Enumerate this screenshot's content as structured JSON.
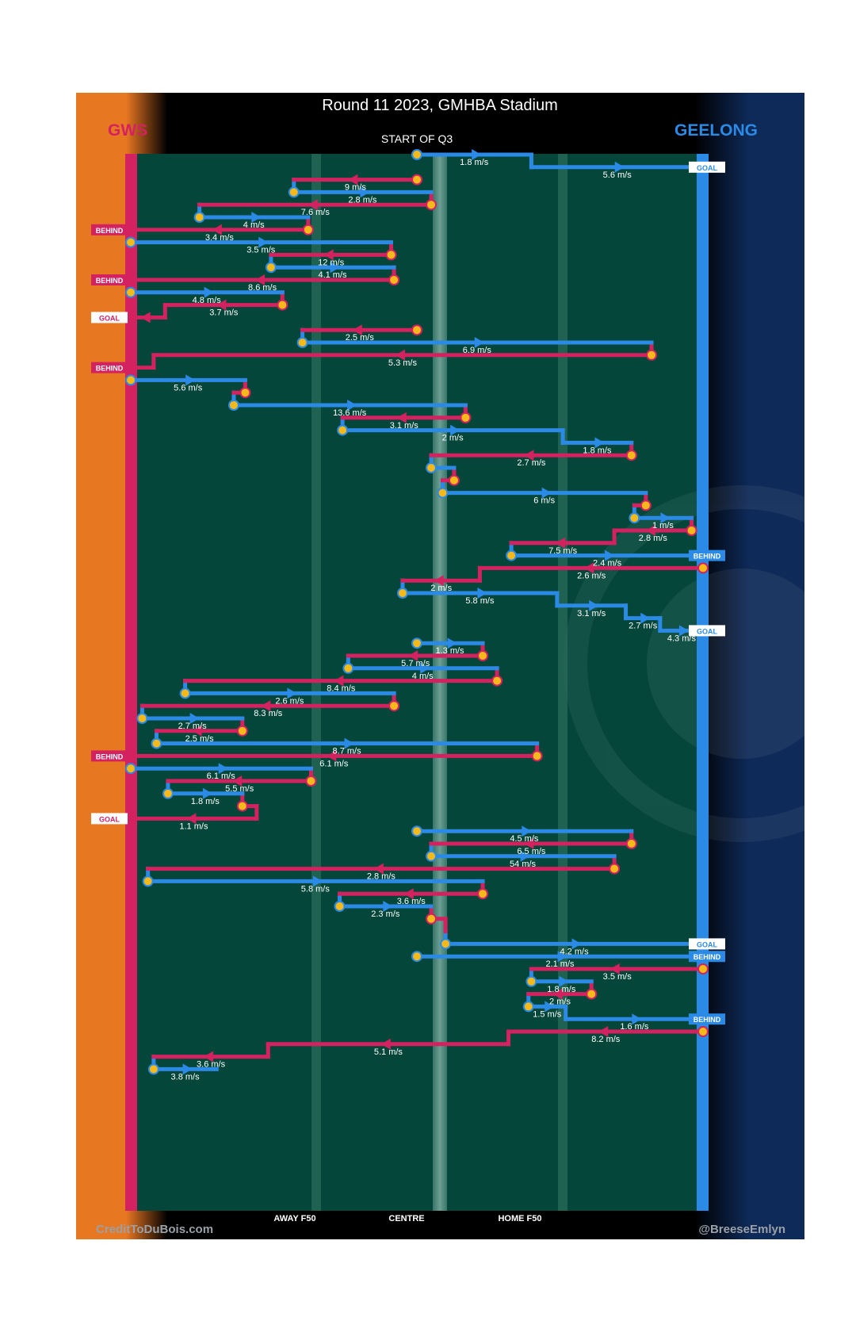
{
  "colors": {
    "gws": "#d4215f",
    "geelong": "#2a8ae6",
    "field": "#04473a",
    "node": "#f5b919",
    "gws_gradient": "#e87722",
    "geelong_gradient": "#0e2a59"
  },
  "header": {
    "title": "Round 11 2023, GMHBA Stadium",
    "start_label": "START OF Q3",
    "team_left": "GWS",
    "team_right": "GEELONG"
  },
  "footer": {
    "credit_left": "CreditToDuBois.com",
    "credit_right": "@BreeseEmlyn"
  },
  "chart_data": {
    "type": "line",
    "title": "Round 11 2023, GMHBA Stadium",
    "subtitle": "START OF Q3",
    "xlabel": "",
    "ylabel": "",
    "x_ticks": [
      "AWAY F50",
      "CENTRE",
      "HOME F50"
    ],
    "x_range": [
      0,
      100
    ],
    "y_range": [
      0,
      76
    ],
    "series": [
      {
        "name": "GWS",
        "direction": "left"
      },
      {
        "name": "GEELONG",
        "direction": "right"
      }
    ],
    "events": [
      {
        "team": "geelong",
        "x1": 50,
        "x2": 70,
        "speed": "1.8 m/s"
      },
      {
        "team": "geelong",
        "x1": 70,
        "x2": 100,
        "speed": "5.6 m/s",
        "outcome": "GOAL"
      },
      {
        "team": "gws",
        "x1": 50,
        "x2": 28.5,
        "speed": "9 m/s"
      },
      {
        "team": "geelong",
        "x1": 28.5,
        "x2": 52.5,
        "speed": "2.8 m/s"
      },
      {
        "team": "gws",
        "x1": 52.5,
        "x2": 12,
        "speed": "7.6 m/s"
      },
      {
        "team": "geelong",
        "x1": 12,
        "x2": 31,
        "speed": "4 m/s"
      },
      {
        "team": "gws",
        "x1": 31,
        "x2": 0,
        "speed": "3.4 m/s",
        "outcome": "BEHIND"
      },
      {
        "team": "geelong",
        "x1": 0,
        "x2": 45.5,
        "speed": "3.5 m/s"
      },
      {
        "team": "gws",
        "x1": 45.5,
        "x2": 24.5,
        "speed": "12 m/s"
      },
      {
        "team": "geelong",
        "x1": 24.5,
        "x2": 46,
        "speed": "4.1 m/s"
      },
      {
        "team": "gws",
        "x1": 46,
        "x2": 0,
        "speed": "8.6 m/s",
        "outcome": "BEHIND"
      },
      {
        "team": "geelong",
        "x1": 0,
        "x2": 26.5,
        "speed": "4.8 m/s"
      },
      {
        "team": "gws",
        "x1": 26.5,
        "x2": 6,
        "speed": "3.7 m/s"
      },
      {
        "team": "gws",
        "x1": 6,
        "x2": 0,
        "speed": "",
        "outcome": "GOAL"
      },
      {
        "team": "gws",
        "x1": 50,
        "x2": 30,
        "speed": "2.5 m/s"
      },
      {
        "team": "geelong",
        "x1": 30,
        "x2": 91,
        "speed": "6.9 m/s"
      },
      {
        "team": "gws",
        "x1": 91,
        "x2": 4,
        "speed": "5.3 m/s"
      },
      {
        "team": "gws",
        "x1": 4,
        "x2": 0,
        "speed": "",
        "outcome": "BEHIND"
      },
      {
        "team": "geelong",
        "x1": 0,
        "x2": 20,
        "speed": "5.6 m/s"
      },
      {
        "team": "gws",
        "x1": 20,
        "x2": 18,
        "speed": ""
      },
      {
        "team": "geelong",
        "x1": 18,
        "x2": 58.5,
        "speed": "13.6 m/s"
      },
      {
        "team": "gws",
        "x1": 58.5,
        "x2": 37,
        "speed": "3.1 m/s"
      },
      {
        "team": "geelong",
        "x1": 37,
        "x2": 75.5,
        "speed": "2 m/s"
      },
      {
        "team": "geelong",
        "x1": 75.5,
        "x2": 87.5,
        "speed": "1.8 m/s"
      },
      {
        "team": "gws",
        "x1": 87.5,
        "x2": 52.5,
        "speed": "2.7 m/s"
      },
      {
        "team": "geelong",
        "x1": 52.5,
        "x2": 56.5,
        "speed": ""
      },
      {
        "team": "gws",
        "x1": 56.5,
        "x2": 54.5,
        "speed": ""
      },
      {
        "team": "geelong",
        "x1": 54.5,
        "x2": 90,
        "speed": "6 m/s"
      },
      {
        "team": "gws",
        "x1": 90,
        "x2": 88,
        "speed": ""
      },
      {
        "team": "geelong",
        "x1": 88,
        "x2": 98,
        "speed": "1 m/s"
      },
      {
        "team": "gws",
        "x1": 98,
        "x2": 84.5,
        "speed": "2.8 m/s"
      },
      {
        "team": "gws",
        "x1": 84.5,
        "x2": 66.5,
        "speed": "7.5 m/s"
      },
      {
        "team": "geelong",
        "x1": 66.5,
        "x2": 100,
        "speed": "2.4 m/s",
        "outcome": "BEHIND"
      },
      {
        "team": "gws",
        "x1": 100,
        "x2": 61,
        "speed": "2.6 m/s"
      },
      {
        "team": "gws",
        "x1": 61,
        "x2": 47.5,
        "speed": "2 m/s"
      },
      {
        "team": "geelong",
        "x1": 47.5,
        "x2": 74.5,
        "speed": "5.8 m/s"
      },
      {
        "team": "geelong",
        "x1": 74.5,
        "x2": 86.5,
        "speed": "3.1 m/s"
      },
      {
        "team": "geelong",
        "x1": 86.5,
        "x2": 92.5,
        "speed": "2.7 m/s"
      },
      {
        "team": "geelong",
        "x1": 92.5,
        "x2": 100,
        "speed": "4.3 m/s",
        "outcome": "GOAL"
      },
      {
        "team": "geelong",
        "x1": 50,
        "x2": 61.5,
        "speed": "1.3 m/s"
      },
      {
        "team": "gws",
        "x1": 61.5,
        "x2": 38,
        "speed": "5.7 m/s"
      },
      {
        "team": "geelong",
        "x1": 38,
        "x2": 64,
        "speed": "4 m/s"
      },
      {
        "team": "gws",
        "x1": 64,
        "x2": 9.5,
        "speed": "8.4 m/s"
      },
      {
        "team": "geelong",
        "x1": 9.5,
        "x2": 46,
        "speed": "2.6 m/s"
      },
      {
        "team": "gws",
        "x1": 46,
        "x2": 2,
        "speed": "8.3 m/s"
      },
      {
        "team": "geelong",
        "x1": 2,
        "x2": 19.5,
        "speed": "2.7 m/s"
      },
      {
        "team": "gws",
        "x1": 19.5,
        "x2": 4.5,
        "speed": "2.5 m/s"
      },
      {
        "team": "geelong",
        "x1": 4.5,
        "x2": 71,
        "speed": "8.7 m/s"
      },
      {
        "team": "gws",
        "x1": 71,
        "x2": 0,
        "speed": "6.1 m/s",
        "outcome": "BEHIND"
      },
      {
        "team": "geelong",
        "x1": 0,
        "x2": 31.5,
        "speed": "6.1 m/s"
      },
      {
        "team": "gws",
        "x1": 31.5,
        "x2": 6.5,
        "speed": "5.5 m/s"
      },
      {
        "team": "geelong",
        "x1": 6.5,
        "x2": 19.5,
        "speed": "1.8 m/s"
      },
      {
        "team": "gws",
        "x1": 19.5,
        "x2": 22,
        "speed": ""
      },
      {
        "team": "gws",
        "x1": 22,
        "x2": 0,
        "speed": "1.1 m/s",
        "outcome": "GOAL"
      },
      {
        "team": "geelong",
        "x1": 50,
        "x2": 87.5,
        "speed": "4.5 m/s"
      },
      {
        "team": "gws",
        "x1": 87.5,
        "x2": 52.5,
        "speed": "6.5 m/s"
      },
      {
        "team": "geelong",
        "x1": 52.5,
        "x2": 84.5,
        "speed": "54 m/s"
      },
      {
        "team": "gws",
        "x1": 84.5,
        "x2": 3,
        "speed": "2.8 m/s"
      },
      {
        "team": "geelong",
        "x1": 3,
        "x2": 61.5,
        "speed": "5.8 m/s"
      },
      {
        "team": "gws",
        "x1": 61.5,
        "x2": 36.5,
        "speed": "3.6 m/s"
      },
      {
        "team": "geelong",
        "x1": 36.5,
        "x2": 52.5,
        "speed": "2.3 m/s"
      },
      {
        "team": "gws",
        "x1": 52.5,
        "x2": 55,
        "speed": ""
      },
      {
        "team": "gws",
        "x1": 55,
        "x2": 55,
        "speed": ""
      },
      {
        "team": "geelong",
        "x1": 55,
        "x2": 100,
        "speed": "4.2 m/s",
        "outcome": "GOAL"
      },
      {
        "team": "geelong",
        "x1": 50,
        "x2": 100,
        "speed": "2.1 m/s",
        "outcome": "BEHIND"
      },
      {
        "team": "gws",
        "x1": 100,
        "x2": 70,
        "speed": "3.5 m/s"
      },
      {
        "team": "geelong",
        "x1": 70,
        "x2": 80.5,
        "speed": "1.8 m/s"
      },
      {
        "team": "gws",
        "x1": 80.5,
        "x2": 69.5,
        "speed": "2 m/s"
      },
      {
        "team": "geelong",
        "x1": 69.5,
        "x2": 76,
        "speed": "1.5 m/s"
      },
      {
        "team": "geelong",
        "x1": 76,
        "x2": 100,
        "speed": "1.6 m/s",
        "outcome": "BEHIND"
      },
      {
        "team": "gws",
        "x1": 100,
        "x2": 66,
        "speed": "8.2 m/s"
      },
      {
        "team": "gws",
        "x1": 66,
        "x2": 24,
        "speed": "5.1 m/s"
      },
      {
        "team": "gws",
        "x1": 24,
        "x2": 4,
        "speed": "3.6 m/s"
      },
      {
        "team": "geelong",
        "x1": 4,
        "x2": 15,
        "speed": "3.8 m/s"
      }
    ]
  }
}
